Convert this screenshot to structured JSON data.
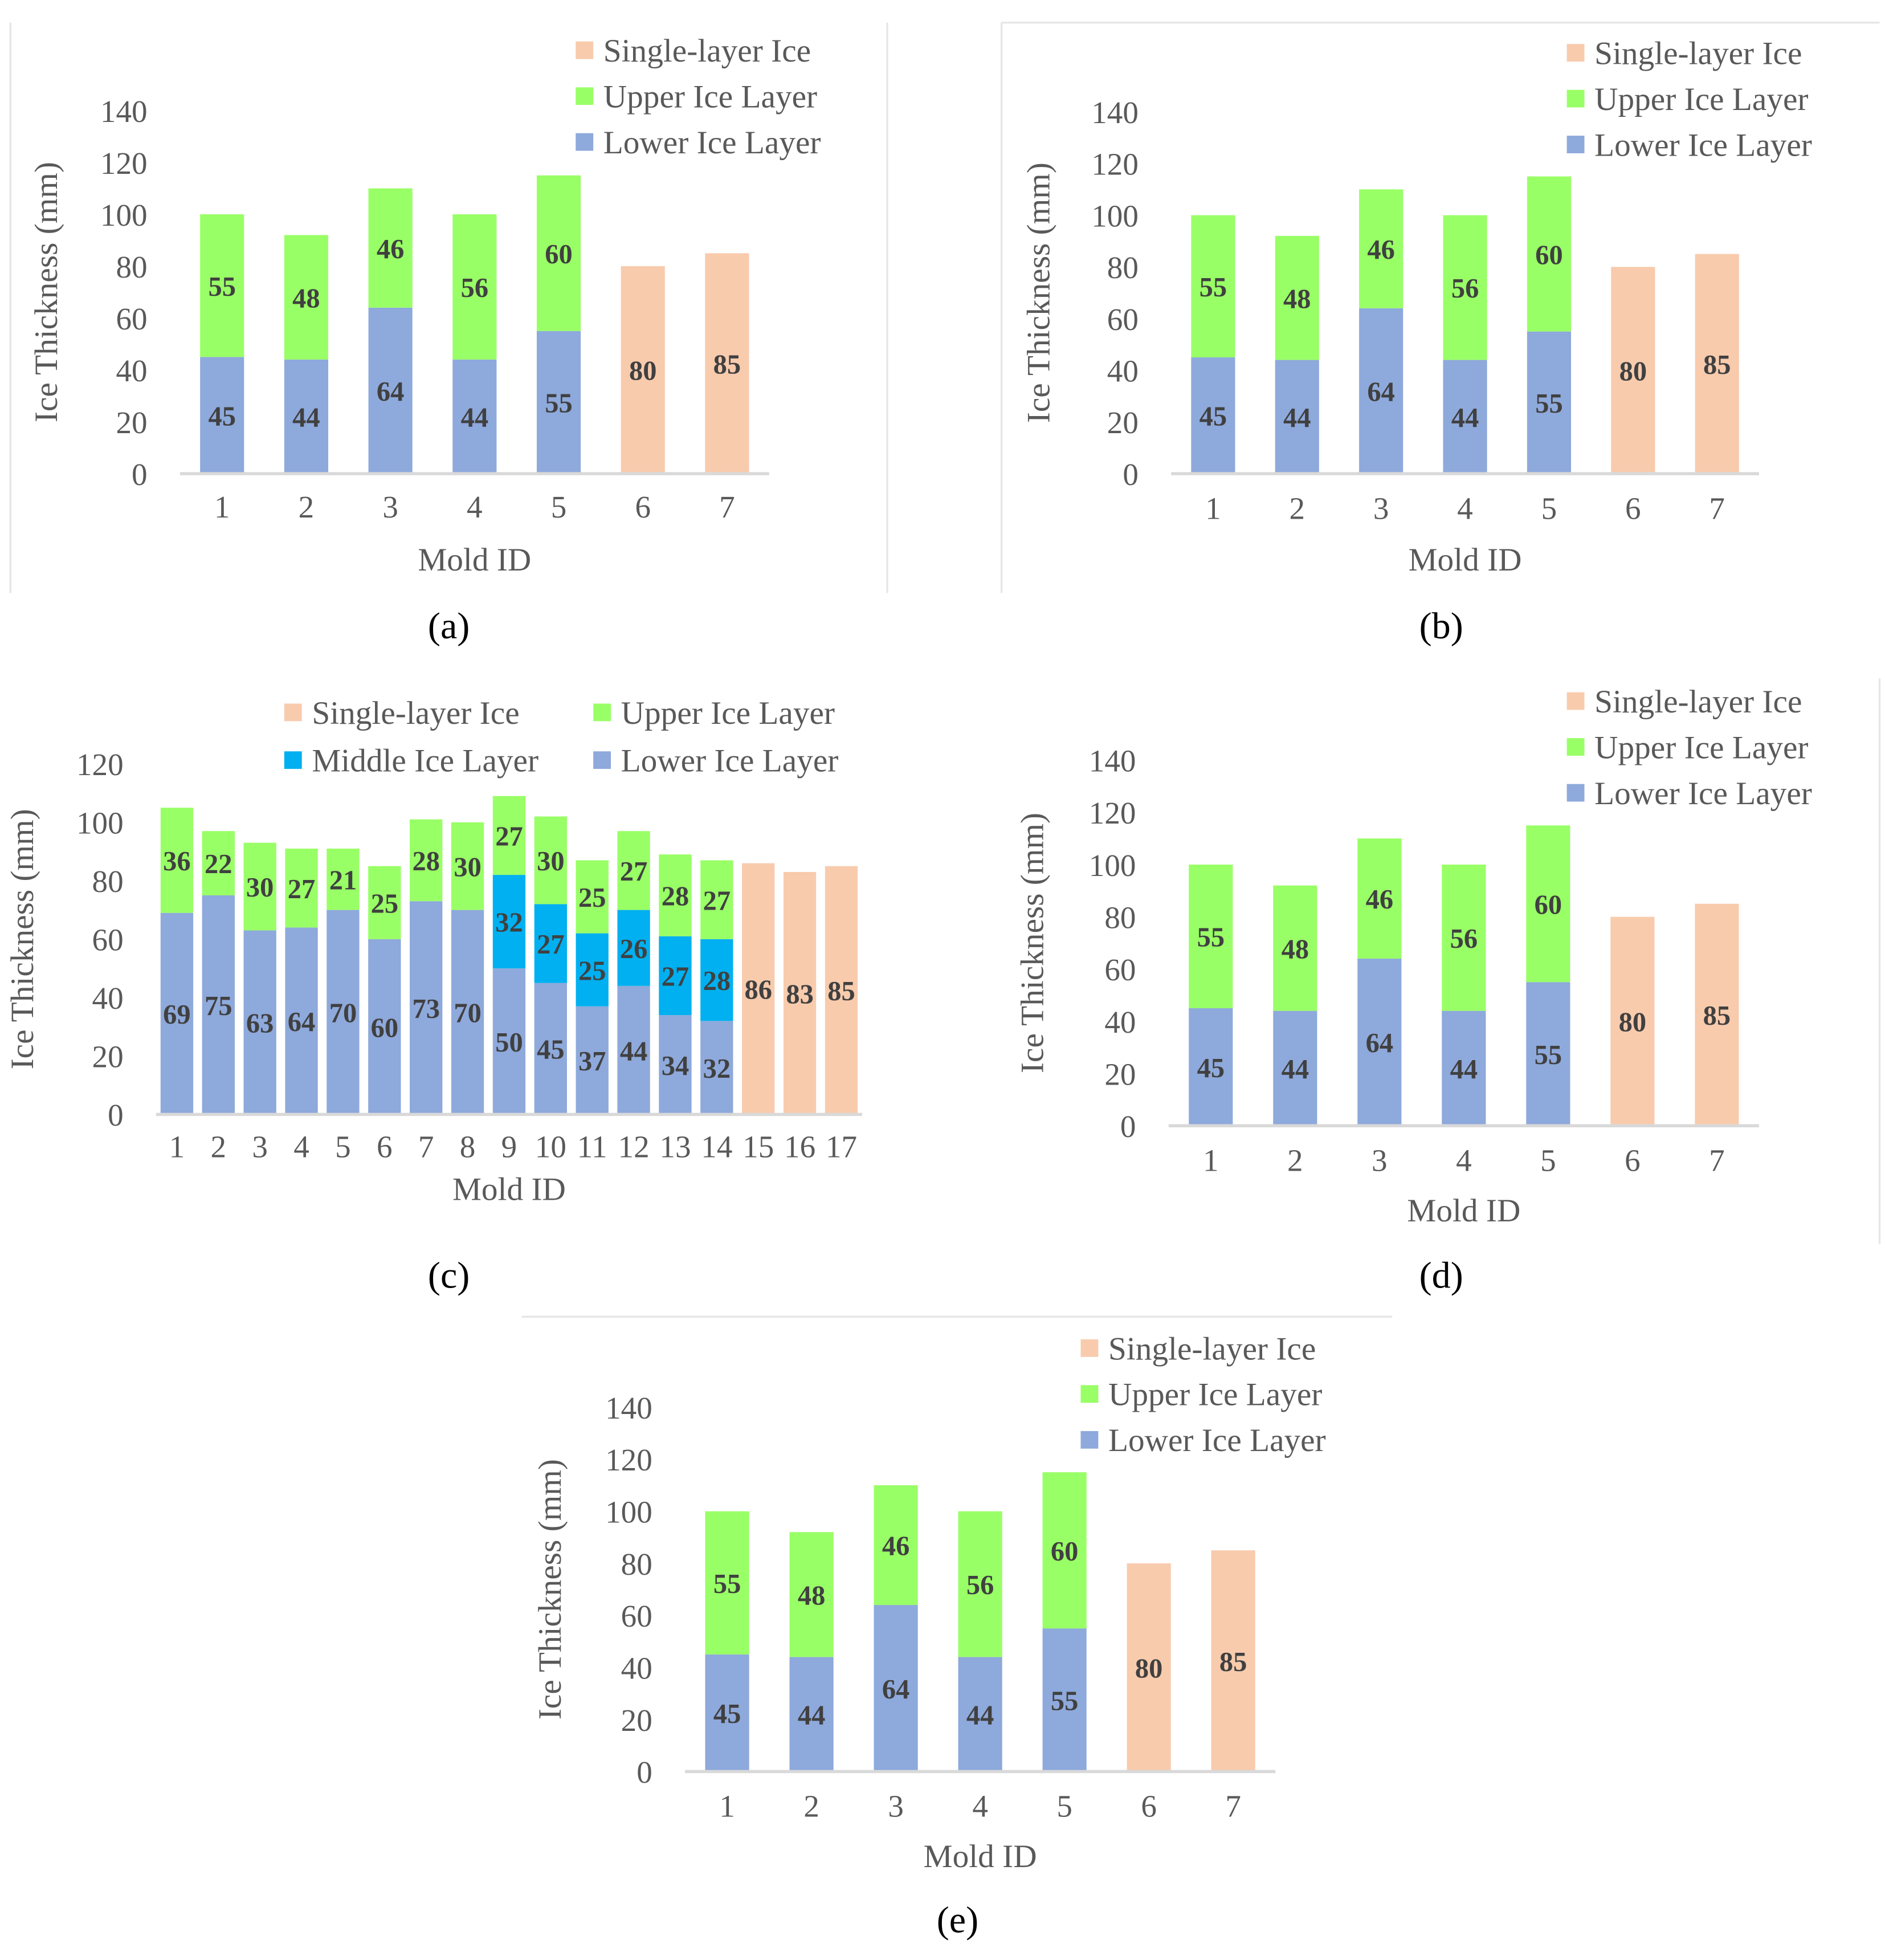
{
  "chart_data": [
    {
      "type": "bar",
      "stacked": true,
      "panel_label": "(a)",
      "xlabel": "Mold ID",
      "ylabel": "Ice Thickness (mm)",
      "ylim": [
        0,
        140
      ],
      "yticks": [
        0,
        20,
        40,
        60,
        80,
        100,
        120,
        140
      ],
      "categories": [
        "1",
        "2",
        "3",
        "4",
        "5",
        "6",
        "7"
      ],
      "legend": [
        "Single-layer Ice",
        "Upper Ice Layer",
        "Lower Ice Layer"
      ],
      "legend_position": "top-right",
      "series": [
        {
          "name": "Lower Ice Layer",
          "color": "#8EA9DB",
          "values": [
            45,
            44,
            64,
            44,
            55,
            null,
            null
          ]
        },
        {
          "name": "Upper Ice Layer",
          "color": "#99FF66",
          "values": [
            55,
            48,
            46,
            56,
            60,
            null,
            null
          ]
        },
        {
          "name": "Single-layer Ice",
          "color": "#F8CBAD",
          "values": [
            null,
            null,
            null,
            null,
            null,
            80,
            85
          ]
        }
      ]
    },
    {
      "type": "bar",
      "stacked": true,
      "panel_label": "(b)",
      "xlabel": "Mold ID",
      "ylabel": "Ice Thickness (mm)",
      "ylim": [
        0,
        140
      ],
      "yticks": [
        0,
        20,
        40,
        60,
        80,
        100,
        120,
        140
      ],
      "categories": [
        "1",
        "2",
        "3",
        "4",
        "5",
        "6",
        "7"
      ],
      "legend": [
        "Single-layer Ice",
        "Upper Ice Layer",
        "Lower Ice Layer"
      ],
      "legend_position": "top-right",
      "series": [
        {
          "name": "Lower Ice Layer",
          "color": "#8EA9DB",
          "values": [
            45,
            44,
            64,
            44,
            55,
            null,
            null
          ]
        },
        {
          "name": "Upper Ice Layer",
          "color": "#99FF66",
          "values": [
            55,
            48,
            46,
            56,
            60,
            null,
            null
          ]
        },
        {
          "name": "Single-layer Ice",
          "color": "#F8CBAD",
          "values": [
            null,
            null,
            null,
            null,
            null,
            80,
            85
          ]
        }
      ]
    },
    {
      "type": "bar",
      "stacked": true,
      "panel_label": "(c)",
      "xlabel": "Mold ID",
      "ylabel": "Ice Thickness (mm)",
      "ylim": [
        0,
        120
      ],
      "yticks": [
        0,
        20,
        40,
        60,
        80,
        100,
        120
      ],
      "categories": [
        "1",
        "2",
        "3",
        "4",
        "5",
        "6",
        "7",
        "8",
        "9",
        "10",
        "11",
        "12",
        "13",
        "14",
        "15",
        "16",
        "17"
      ],
      "legend": [
        "Single-layer Ice",
        "Upper Ice Layer",
        "Middle Ice Layer",
        "Lower Ice Layer"
      ],
      "legend_position": "top",
      "series": [
        {
          "name": "Lower Ice Layer",
          "color": "#8EA9DB",
          "values": [
            69,
            75,
            63,
            64,
            70,
            60,
            73,
            70,
            50,
            45,
            37,
            44,
            34,
            32,
            null,
            null,
            null
          ]
        },
        {
          "name": "Middle Ice Layer",
          "color": "#00B0F0",
          "values": [
            null,
            null,
            null,
            null,
            null,
            null,
            null,
            null,
            32,
            27,
            25,
            26,
            27,
            28,
            null,
            null,
            null
          ]
        },
        {
          "name": "Upper Ice Layer",
          "color": "#99FF66",
          "values": [
            36,
            22,
            30,
            27,
            21,
            25,
            28,
            30,
            27,
            30,
            25,
            27,
            28,
            27,
            null,
            null,
            null
          ]
        },
        {
          "name": "Single-layer Ice",
          "color": "#F8CBAD",
          "values": [
            null,
            null,
            null,
            null,
            null,
            null,
            null,
            null,
            null,
            null,
            null,
            null,
            null,
            null,
            86,
            83,
            85
          ]
        }
      ]
    },
    {
      "type": "bar",
      "stacked": true,
      "panel_label": "(d)",
      "xlabel": "Mold ID",
      "ylabel": "Ice Thickness (mm)",
      "ylim": [
        0,
        140
      ],
      "yticks": [
        0,
        20,
        40,
        60,
        80,
        100,
        120,
        140
      ],
      "categories": [
        "1",
        "2",
        "3",
        "4",
        "5",
        "6",
        "7"
      ],
      "legend": [
        "Single-layer Ice",
        "Upper Ice Layer",
        "Lower Ice Layer"
      ],
      "legend_position": "top-right",
      "series": [
        {
          "name": "Lower Ice Layer",
          "color": "#8EA9DB",
          "values": [
            45,
            44,
            64,
            44,
            55,
            null,
            null
          ]
        },
        {
          "name": "Upper Ice Layer",
          "color": "#99FF66",
          "values": [
            55,
            48,
            46,
            56,
            60,
            null,
            null
          ]
        },
        {
          "name": "Single-layer Ice",
          "color": "#F8CBAD",
          "values": [
            null,
            null,
            null,
            null,
            null,
            80,
            85
          ]
        }
      ]
    },
    {
      "type": "bar",
      "stacked": true,
      "panel_label": "(e)",
      "xlabel": "Mold ID",
      "ylabel": "Ice Thickness (mm)",
      "ylim": [
        0,
        140
      ],
      "yticks": [
        0,
        20,
        40,
        60,
        80,
        100,
        120,
        140
      ],
      "categories": [
        "1",
        "2",
        "3",
        "4",
        "5",
        "6",
        "7"
      ],
      "legend": [
        "Single-layer Ice",
        "Upper Ice Layer",
        "Lower Ice Layer"
      ],
      "legend_position": "top-right",
      "series": [
        {
          "name": "Lower Ice Layer",
          "color": "#8EA9DB",
          "values": [
            45,
            44,
            64,
            44,
            55,
            null,
            null
          ]
        },
        {
          "name": "Upper Ice Layer",
          "color": "#99FF66",
          "values": [
            55,
            48,
            46,
            56,
            60,
            null,
            null
          ]
        },
        {
          "name": "Single-layer Ice",
          "color": "#F8CBAD",
          "values": [
            null,
            null,
            null,
            null,
            null,
            80,
            85
          ]
        }
      ]
    }
  ]
}
